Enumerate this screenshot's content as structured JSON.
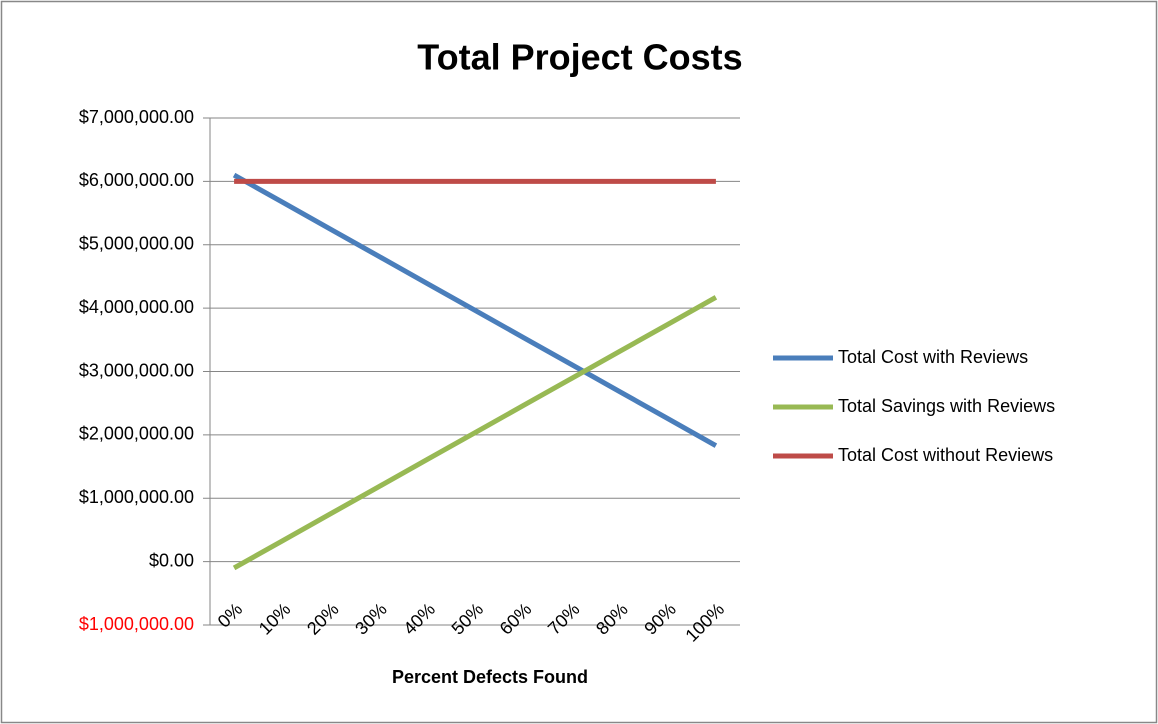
{
  "chart_data": {
    "type": "line",
    "title": "Total Project Costs",
    "x_label": "Percent Defects Found",
    "categories": [
      "0%",
      "10%",
      "20%",
      "30%",
      "40%",
      "50%",
      "60%",
      "70%",
      "80%",
      "90%",
      "100%"
    ],
    "series": [
      {
        "name": "Total Cost with Reviews",
        "color": "#4a7ebb",
        "values": [
          6100000,
          5673000,
          5246000,
          4819000,
          4392000,
          3965000,
          3538000,
          3111000,
          2684000,
          2257000,
          1830000
        ]
      },
      {
        "name": "Total Savings with Reviews",
        "color": "#98b954",
        "values": [
          -100000,
          327000,
          754000,
          1181000,
          1608000,
          2035000,
          2462000,
          2889000,
          3316000,
          3743000,
          4170000
        ]
      },
      {
        "name": "Total Cost without Reviews",
        "color": "#be4b48",
        "values": [
          6000000,
          6000000,
          6000000,
          6000000,
          6000000,
          6000000,
          6000000,
          6000000,
          6000000,
          6000000,
          6000000
        ]
      }
    ],
    "ylim": [
      -1000000,
      7000000
    ],
    "yticks": [
      {
        "value": -1000000,
        "label": "$1,000,000.00"
      },
      {
        "value": 0,
        "label": "$0.00"
      },
      {
        "value": 1000000,
        "label": "$1,000,000.00"
      },
      {
        "value": 2000000,
        "label": "$2,000,000.00"
      },
      {
        "value": 3000000,
        "label": "$3,000,000.00"
      },
      {
        "value": 4000000,
        "label": "$4,000,000.00"
      },
      {
        "value": 5000000,
        "label": "$5,000,000.00"
      },
      {
        "value": 6000000,
        "label": "$6,000,000.00"
      },
      {
        "value": 7000000,
        "label": "$7,000,000.00"
      }
    ],
    "negative_tick_color": "#ff0000",
    "grid": true,
    "legend": "right"
  }
}
